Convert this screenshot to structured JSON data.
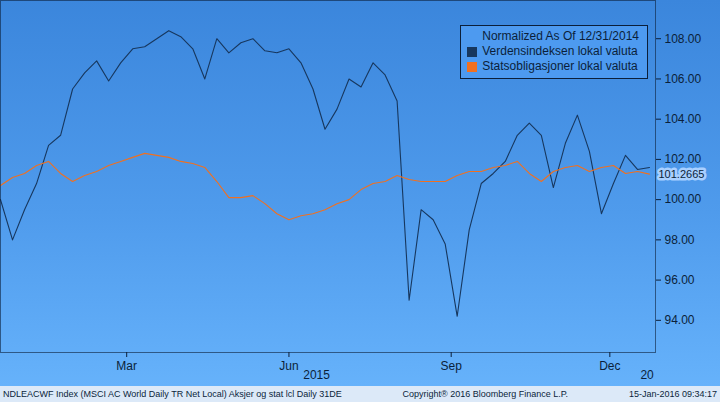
{
  "chart_data": {
    "type": "line",
    "legend_title": "Normalized As Of 12/31/2014",
    "legend": "top-right",
    "x": [
      0,
      1,
      2,
      3,
      4,
      5,
      6,
      7,
      8,
      9,
      10,
      11,
      12,
      13,
      14,
      15,
      16,
      17,
      18,
      19,
      20,
      21,
      22,
      23,
      24,
      25,
      26,
      27,
      28,
      29,
      30,
      31,
      32,
      33,
      34,
      35,
      36,
      37,
      38,
      39,
      40,
      41,
      42,
      43,
      44,
      45,
      46,
      47,
      48,
      49,
      50,
      51,
      52,
      53,
      54
    ],
    "series": [
      {
        "name": "Verdensindeksen lokal valuta",
        "color": "#17375e",
        "values": [
          100.0,
          98.0,
          99.5,
          100.8,
          102.7,
          103.2,
          105.5,
          106.3,
          106.9,
          105.9,
          106.8,
          107.5,
          107.6,
          108.0,
          108.4,
          108.1,
          107.5,
          106.0,
          108.0,
          107.3,
          107.8,
          108.0,
          107.4,
          107.3,
          107.5,
          106.8,
          105.5,
          103.5,
          104.5,
          106.0,
          105.6,
          106.8,
          106.2,
          104.9,
          95.0,
          99.5,
          99.0,
          97.8,
          94.2,
          98.5,
          100.8,
          101.3,
          101.9,
          103.2,
          103.8,
          103.2,
          100.6,
          102.8,
          104.2,
          102.4,
          99.3,
          100.8,
          102.2,
          101.5,
          101.6
        ]
      },
      {
        "name": "Statsobligasjoner lokal valuta",
        "color": "#f07020",
        "values": [
          100.7,
          101.1,
          101.3,
          101.7,
          101.9,
          101.3,
          100.9,
          101.2,
          101.4,
          101.7,
          101.9,
          102.1,
          102.3,
          102.2,
          102.1,
          101.9,
          101.8,
          101.6,
          100.9,
          100.1,
          100.1,
          100.2,
          99.8,
          99.3,
          99.0,
          99.2,
          99.3,
          99.5,
          99.8,
          100.0,
          100.5,
          100.8,
          100.9,
          101.2,
          101.0,
          100.9,
          100.9,
          100.9,
          101.2,
          101.4,
          101.4,
          101.6,
          101.7,
          101.9,
          101.3,
          100.9,
          101.4,
          101.6,
          101.7,
          101.4,
          101.6,
          101.7,
          101.3,
          101.4,
          101.2665
        ]
      }
    ],
    "xlim": [
      0,
      54.5
    ],
    "xticks": [
      {
        "value": 10.5,
        "label": "Mar"
      },
      {
        "value": 24,
        "label": "Jun"
      },
      {
        "value": 37.5,
        "label": "Sep"
      },
      {
        "value": 50.7,
        "label": "Dec"
      }
    ],
    "ylim": [
      92.4,
      109.9
    ],
    "yticks": [
      {
        "value": 94,
        "label": "94.00"
      },
      {
        "value": 96,
        "label": "96.00"
      },
      {
        "value": 98,
        "label": "98.00"
      },
      {
        "value": 100,
        "label": "100.00"
      },
      {
        "value": 102,
        "label": "102.00"
      },
      {
        "value": 104,
        "label": "104.00"
      },
      {
        "value": 106,
        "label": "106.00"
      },
      {
        "value": 108,
        "label": "108.00"
      }
    ],
    "annotations": [
      {
        "text": "2015",
        "x": 26.3
      },
      {
        "text": "20",
        "x": 53.8
      }
    ],
    "footer": [
      "NDLEACWF Index (MSCI AC World Daily TR Net Local) Aksjer og stat lcl  Daily 31DE",
      "Copyright® 2016 Bloomberg Finance L.P.",
      "15-Jan-2016 09:34:17"
    ]
  }
}
